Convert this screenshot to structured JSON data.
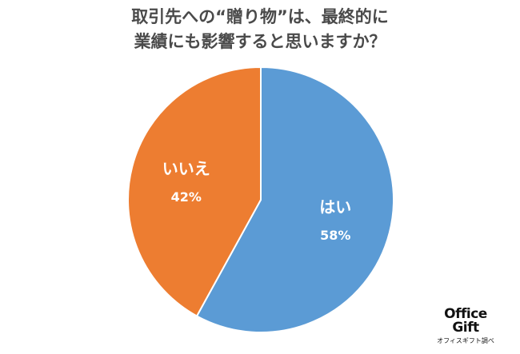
{
  "chart_data": {
    "type": "pie",
    "title_lines": [
      "取引先への“贈り物”は、最終的に",
      "業績にも影響すると思いますか？"
    ],
    "slices": [
      {
        "label": "はい",
        "value": 58,
        "value_label": "58%",
        "color": "#5b9bd5"
      },
      {
        "label": "いいえ",
        "value": 42,
        "value_label": "42%",
        "color": "#ed7d31"
      }
    ],
    "start_angle_deg": 0,
    "direction": "clockwise",
    "slice_border_color": "#ffffff",
    "label_color": "#ffffff"
  },
  "brand": {
    "line1": "Office",
    "line2": "Gift",
    "sub": "オフィスギフト調べ"
  }
}
